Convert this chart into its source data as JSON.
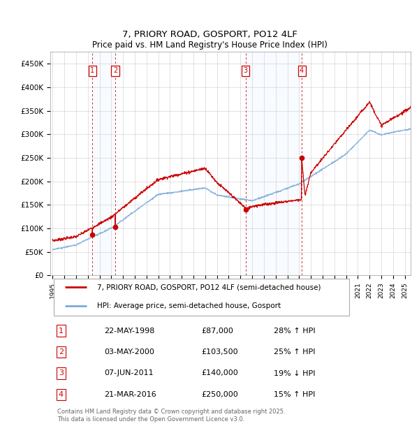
{
  "title": "7, PRIORY ROAD, GOSPORT, PO12 4LF",
  "subtitle": "Price paid vs. HM Land Registry's House Price Index (HPI)",
  "ylabel_ticks": [
    "£0",
    "£50K",
    "£100K",
    "£150K",
    "£200K",
    "£250K",
    "£300K",
    "£350K",
    "£400K",
    "£450K"
  ],
  "ytick_values": [
    0,
    50000,
    100000,
    150000,
    200000,
    250000,
    300000,
    350000,
    400000,
    450000
  ],
  "ylim": [
    0,
    475000
  ],
  "xlim_start": 1994.8,
  "xlim_end": 2025.5,
  "transactions": [
    {
      "label": "1",
      "date_num": 1998.38,
      "price": 87000,
      "pct": "28%",
      "dir": "↑",
      "date_str": "22-MAY-1998"
    },
    {
      "label": "2",
      "date_num": 2000.33,
      "price": 103500,
      "pct": "25%",
      "dir": "↑",
      "date_str": "03-MAY-2000"
    },
    {
      "label": "3",
      "date_num": 2011.43,
      "price": 140000,
      "pct": "19%",
      "dir": "↓",
      "date_str": "07-JUN-2011"
    },
    {
      "label": "4",
      "date_num": 2016.22,
      "price": 250000,
      "pct": "15%",
      "dir": "↑",
      "date_str": "21-MAR-2016"
    }
  ],
  "legend_line1": "7, PRIORY ROAD, GOSPORT, PO12 4LF (semi-detached house)",
  "legend_line2": "HPI: Average price, semi-detached house, Gosport",
  "footer": "Contains HM Land Registry data © Crown copyright and database right 2025.\nThis data is licensed under the Open Government Licence v3.0.",
  "table_rows": [
    [
      "1",
      "22-MAY-1998",
      "£87,000",
      "28% ↑ HPI"
    ],
    [
      "2",
      "03-MAY-2000",
      "£103,500",
      "25% ↑ HPI"
    ],
    [
      "3",
      "07-JUN-2011",
      "£140,000",
      "19% ↓ HPI"
    ],
    [
      "4",
      "21-MAR-2016",
      "£250,000",
      "15% ↑ HPI"
    ]
  ],
  "red_color": "#cc0000",
  "blue_color": "#7aabdb",
  "shade_color": "#ddeeff",
  "grid_color": "#cccccc",
  "background_color": "#ffffff"
}
